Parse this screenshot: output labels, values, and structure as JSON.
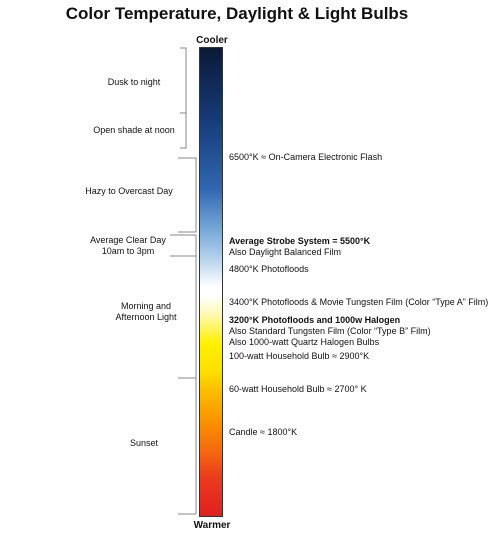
{
  "title": "Color Temperature, Daylight & Light Bulbs",
  "scale": {
    "top_label": "Cooler",
    "bottom_label": "Warmer"
  },
  "left_ranges": [
    {
      "lines": [
        "Dusk to night"
      ]
    },
    {
      "lines": [
        "Open shade at noon"
      ]
    },
    {
      "lines": [
        "Hazy to Overcast Day"
      ]
    },
    {
      "lines": [
        "Average Clear Day",
        "10am to 3pm"
      ]
    },
    {
      "lines": [
        "Morning and",
        "Afternoon Light"
      ]
    },
    {
      "lines": [
        "Sunset"
      ]
    }
  ],
  "right_annotations": [
    {
      "text": "6500°K ≈ On-Camera Electronic Flash",
      "bold": false
    },
    {
      "text": "Average Strobe System = 5500°K",
      "bold": true
    },
    {
      "text": "Also Daylight Balanced Film",
      "bold": false
    },
    {
      "text": "4800°K Photofloods",
      "bold": false
    },
    {
      "text": "3400°K Photofloods & Movie Tungsten Film (Color “Type A” Film)",
      "bold": false
    },
    {
      "text": "3200°K Photofloods and 1000w Halogen",
      "bold": true
    },
    {
      "text": "Also Standard Tungsten Film (Color “Type B” Film)",
      "bold": false
    },
    {
      "text": "Also 1000-watt Quartz Halogen Bulbs",
      "bold": false
    },
    {
      "text": "100-watt Household Bulb ≈ 2900°K",
      "bold": false
    },
    {
      "text": "60-watt Household Bulb ≈ 2700° K",
      "bold": false
    },
    {
      "text": "Candle ≈ 1800°K",
      "bold": false
    }
  ]
}
